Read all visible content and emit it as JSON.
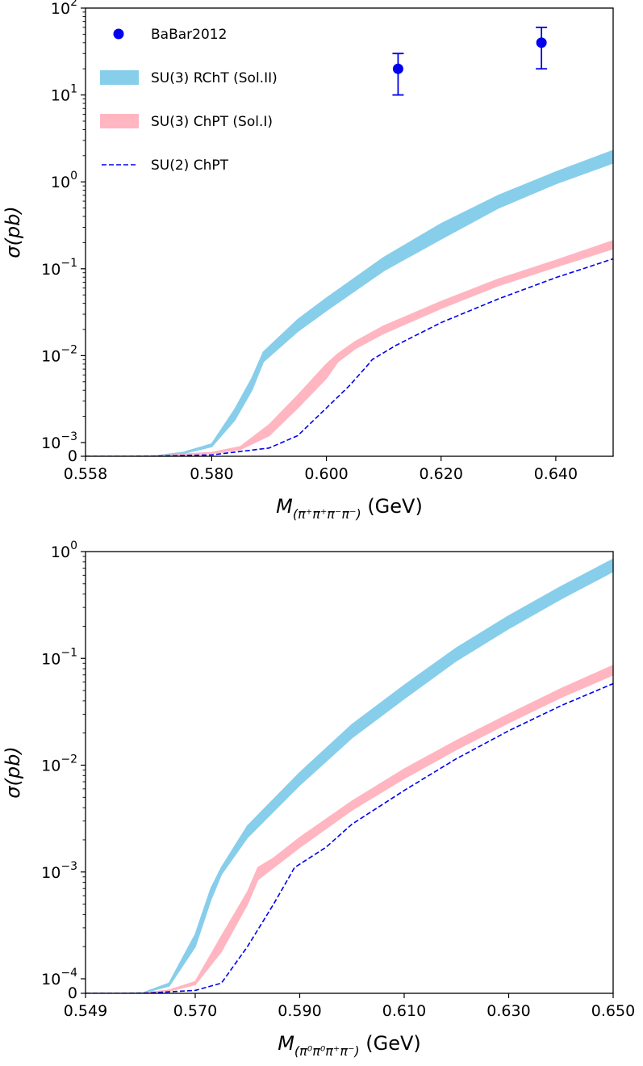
{
  "chart_data": [
    {
      "type": "line",
      "title": "",
      "xlabel_symbol": "M",
      "xlabel_subscript": "(π⁺π⁺π⁻π⁻)",
      "xlabel_unit": "(GeV)",
      "ylabel": "σ(pb)",
      "yscale": "symlog",
      "xlim": [
        0.558,
        0.65
      ],
      "ylim": [
        0,
        100
      ],
      "xticks": [
        0.558,
        0.58,
        0.6,
        0.62,
        0.64
      ],
      "xtick_labels": [
        "0.558",
        "0.580",
        "0.600",
        "0.620",
        "0.640"
      ],
      "ytick_labels": [
        {
          "value": 0,
          "base": "0",
          "exp": ""
        },
        {
          "value": 0.001,
          "base": "10",
          "exp": "−3"
        },
        {
          "value": 0.01,
          "base": "10",
          "exp": "−2"
        },
        {
          "value": 0.1,
          "base": "10",
          "exp": "−1"
        },
        {
          "value": 1,
          "base": "10",
          "exp": "0"
        },
        {
          "value": 10,
          "base": "10",
          "exp": "1"
        },
        {
          "value": 100,
          "base": "10",
          "exp": "2"
        }
      ],
      "legend_position": "top-left",
      "legend": [
        {
          "label": "BaBar2012",
          "kind": "marker",
          "color": "#0000ee"
        },
        {
          "label": "SU(3) RChT (Sol.II)",
          "kind": "band",
          "color": "#87ceeb"
        },
        {
          "label": "SU(3) ChPT (Sol.I)",
          "kind": "band",
          "color": "#ffb6c1"
        },
        {
          "label": "SU(2) ChPT",
          "kind": "dashed",
          "color": "#0000ee"
        }
      ],
      "series": [
        {
          "name": "SU(3) RChT (Sol.II)",
          "kind": "band",
          "color": "#87ceeb",
          "x": [
            0.558,
            0.566,
            0.57,
            0.575,
            0.58,
            0.584,
            0.587,
            0.589,
            0.595,
            0.6,
            0.61,
            0.62,
            0.63,
            0.64,
            0.65
          ],
          "low": [
            0,
            0,
            2e-05,
            0.0002,
            0.0007,
            0.0018,
            0.004,
            0.0085,
            0.019,
            0.033,
            0.095,
            0.22,
            0.5,
            0.95,
            1.65
          ],
          "high": [
            0,
            0,
            3e-05,
            0.00028,
            0.0009,
            0.0024,
            0.0055,
            0.011,
            0.026,
            0.046,
            0.135,
            0.33,
            0.7,
            1.3,
            2.3
          ]
        },
        {
          "name": "SU(3) ChPT (Sol.I)",
          "kind": "band",
          "color": "#ffb6c1",
          "x": [
            0.558,
            0.566,
            0.57,
            0.58,
            0.585,
            0.59,
            0.595,
            0.6,
            0.602,
            0.605,
            0.61,
            0.62,
            0.63,
            0.64,
            0.65
          ],
          "low": [
            0,
            0,
            1e-05,
            0.0002,
            0.0005,
            0.0012,
            0.0025,
            0.0055,
            0.0085,
            0.012,
            0.018,
            0.035,
            0.064,
            0.105,
            0.17
          ],
          "high": [
            0,
            0,
            2e-05,
            0.00028,
            0.0007,
            0.0016,
            0.0035,
            0.008,
            0.0105,
            0.0145,
            0.022,
            0.042,
            0.076,
            0.125,
            0.21
          ]
        },
        {
          "name": "SU(2) ChPT",
          "kind": "dashed",
          "color": "#0000ee",
          "x": [
            0.558,
            0.566,
            0.57,
            0.58,
            0.59,
            0.595,
            0.6,
            0.604,
            0.607,
            0.608,
            0.612,
            0.62,
            0.63,
            0.64,
            0.65
          ],
          "y": [
            0,
            0,
            5e-06,
            0.0001,
            0.0006,
            0.0012,
            0.0025,
            0.0045,
            0.0075,
            0.009,
            0.013,
            0.024,
            0.045,
            0.079,
            0.13
          ]
        },
        {
          "name": "BaBar2012",
          "kind": "errorbar",
          "color": "#0000ee",
          "x": [
            0.6125,
            0.6375
          ],
          "y": [
            20,
            40
          ],
          "err_low": [
            10,
            20
          ],
          "err_high": [
            30,
            60
          ]
        }
      ]
    },
    {
      "type": "line",
      "title": "",
      "xlabel_symbol": "M",
      "xlabel_subscript": "(π⁰π⁰π⁺π⁻)",
      "xlabel_unit": "(GeV)",
      "ylabel": "σ(pb)",
      "yscale": "symlog",
      "xlim": [
        0.549,
        0.65
      ],
      "ylim": [
        0,
        1
      ],
      "xticks": [
        0.549,
        0.57,
        0.59,
        0.61,
        0.63,
        0.65
      ],
      "xtick_labels": [
        "0.549",
        "0.570",
        "0.590",
        "0.610",
        "0.630",
        "0.650"
      ],
      "ytick_labels": [
        {
          "value": 0,
          "base": "0",
          "exp": ""
        },
        {
          "value": 0.0001,
          "base": "10",
          "exp": "−4"
        },
        {
          "value": 0.001,
          "base": "10",
          "exp": "−3"
        },
        {
          "value": 0.01,
          "base": "10",
          "exp": "−2"
        },
        {
          "value": 0.1,
          "base": "10",
          "exp": "−1"
        },
        {
          "value": 1,
          "base": "10",
          "exp": "0"
        }
      ],
      "series": [
        {
          "name": "SU(3) RChT (Sol.II)",
          "kind": "band",
          "color": "#87ceeb",
          "x": [
            0.549,
            0.556,
            0.56,
            0.565,
            0.57,
            0.573,
            0.575,
            0.58,
            0.59,
            0.6,
            0.61,
            0.62,
            0.63,
            0.64,
            0.65
          ],
          "low": [
            0,
            0,
            3e-06,
            5e-05,
            0.0002,
            0.00055,
            0.00095,
            0.0021,
            0.0065,
            0.018,
            0.042,
            0.095,
            0.19,
            0.36,
            0.65
          ],
          "high": [
            0,
            0,
            4e-06,
            7e-05,
            0.00026,
            0.0007,
            0.0011,
            0.0027,
            0.0085,
            0.024,
            0.056,
            0.125,
            0.25,
            0.47,
            0.85
          ]
        },
        {
          "name": "SU(3) ChPT (Sol.I)",
          "kind": "band",
          "color": "#ffb6c1",
          "x": [
            0.549,
            0.556,
            0.56,
            0.565,
            0.57,
            0.575,
            0.58,
            0.582,
            0.585,
            0.59,
            0.6,
            0.61,
            0.62,
            0.63,
            0.64,
            0.65
          ],
          "low": [
            0,
            0,
            1e-06,
            1.5e-05,
            6e-05,
            0.00018,
            0.0005,
            0.00085,
            0.0011,
            0.0017,
            0.0038,
            0.0075,
            0.014,
            0.025,
            0.043,
            0.07
          ],
          "high": [
            0,
            0,
            2e-06,
            2.2e-05,
            8e-05,
            0.00025,
            0.00065,
            0.0011,
            0.00135,
            0.0021,
            0.0046,
            0.0092,
            0.017,
            0.03,
            0.052,
            0.086
          ]
        },
        {
          "name": "SU(2) ChPT",
          "kind": "dashed",
          "color": "#0000ee",
          "x": [
            0.549,
            0.556,
            0.56,
            0.57,
            0.575,
            0.58,
            0.585,
            0.588,
            0.589,
            0.595,
            0.6,
            0.61,
            0.62,
            0.63,
            0.64,
            0.65
          ],
          "y": [
            0,
            0,
            5e-07,
            2e-05,
            7e-05,
            0.0002,
            0.0005,
            0.0009,
            0.0011,
            0.0017,
            0.0028,
            0.0058,
            0.0115,
            0.021,
            0.036,
            0.058
          ]
        }
      ]
    }
  ]
}
